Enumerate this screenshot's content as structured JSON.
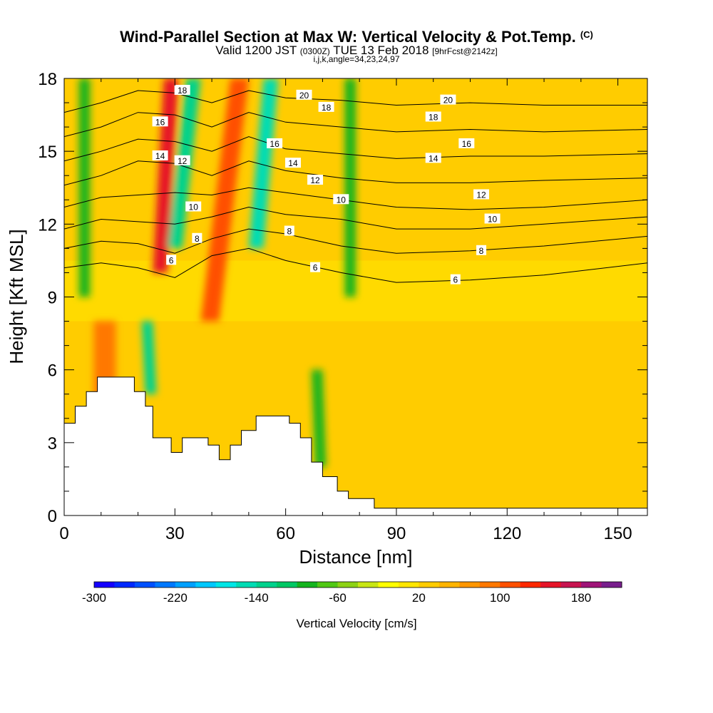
{
  "header": {
    "title": "Wind-Parallel Section at Max W: Vertical Velocity & Pot.Temp.",
    "title_unit": "(C)",
    "valid_prefix": "Valid 1200 JST",
    "valid_utc": "(0300Z)",
    "valid_date": "TUE 13 Feb 2018",
    "forecast": "[9hrFcst@2142z]",
    "indices": "i,j,k,angle=34,23,24,97"
  },
  "chart_data": {
    "type": "heatmap",
    "xlabel": "Distance [nm]",
    "ylabel": "Height [Kft MSL]",
    "xlim": [
      0,
      158
    ],
    "ylim": [
      0,
      18
    ],
    "x_ticks": [
      "0",
      "30",
      "60",
      "90",
      "120",
      "150"
    ],
    "y_ticks": [
      "0",
      "3",
      "6",
      "9",
      "12",
      "15",
      "18"
    ],
    "colorbar": {
      "label": "Vertical Velocity [cm/s]",
      "range": [
        -300,
        200
      ],
      "step": 20,
      "tick_labels": [
        "-300",
        "-220",
        "-140",
        "-60",
        "20",
        "100",
        "180"
      ],
      "colors": [
        "#1400ff",
        "#0028ff",
        "#0050ff",
        "#0078ff",
        "#00a0ff",
        "#00c8ff",
        "#00e6e6",
        "#00dcb4",
        "#00d28c",
        "#00c864",
        "#14b41e",
        "#50c814",
        "#8cd214",
        "#c8e614",
        "#ffff00",
        "#ffe600",
        "#ffcc00",
        "#ffb400",
        "#ff9600",
        "#ff7800",
        "#ff5000",
        "#ff2800",
        "#e61428",
        "#c81450",
        "#a01478",
        "#781e8c"
      ]
    },
    "terrain_profile": {
      "x": [
        0,
        3,
        3,
        6,
        6,
        9,
        9,
        13,
        13,
        19,
        19,
        22,
        22,
        24,
        24,
        26,
        26,
        29,
        29,
        32,
        32,
        39,
        39,
        42,
        42,
        45,
        45,
        48,
        48,
        52,
        52,
        61,
        61,
        64,
        64,
        67,
        67,
        70,
        70,
        74,
        74,
        77,
        77,
        84,
        84,
        158
      ],
      "y": [
        3.8,
        3.8,
        4.5,
        4.5,
        5.1,
        5.1,
        5.7,
        5.7,
        5.7,
        5.7,
        5.1,
        5.1,
        4.5,
        4.5,
        3.2,
        3.2,
        3.2,
        3.2,
        2.6,
        2.6,
        3.2,
        3.2,
        2.9,
        2.9,
        2.3,
        2.3,
        2.9,
        2.9,
        3.5,
        3.5,
        4.1,
        4.1,
        3.8,
        3.8,
        3.2,
        3.2,
        2.2,
        2.2,
        1.6,
        1.6,
        1.0,
        1.0,
        0.7,
        0.7,
        0.3,
        0.3
      ]
    },
    "velocity_bands": [
      {
        "x": 4,
        "w": 3,
        "value": -100,
        "y0": 9,
        "y1": 18,
        "bottom_shift": 0
      },
      {
        "x": 27,
        "w": 4,
        "value": 150,
        "y0": 10,
        "y1": 18,
        "bottom_shift": -3
      },
      {
        "x": 33,
        "w": 4,
        "value": -130,
        "y0": 11,
        "y1": 18,
        "bottom_shift": -5
      },
      {
        "x": 45,
        "w": 5,
        "value": 110,
        "y0": 8,
        "y1": 18,
        "bottom_shift": -8
      },
      {
        "x": 54,
        "w": 4,
        "value": -150,
        "y0": 11,
        "y1": 18,
        "bottom_shift": -4
      },
      {
        "x": 76,
        "w": 3,
        "value": -90,
        "y0": 9,
        "y1": 18,
        "bottom_shift": 0
      },
      {
        "x": 21,
        "w": 3,
        "value": -130,
        "y0": 5,
        "y1": 8,
        "bottom_shift": 1
      },
      {
        "x": 67,
        "w": 3,
        "value": -90,
        "y0": 2,
        "y1": 6,
        "bottom_shift": 1
      },
      {
        "x": 8,
        "w": 6,
        "value": 80,
        "y0": 4,
        "y1": 8,
        "bottom_shift": 0
      }
    ],
    "theta_contours": [
      {
        "level": 6,
        "x": [
          0,
          10,
          20,
          30,
          40,
          50,
          60,
          75,
          90,
          110,
          130,
          158
        ],
        "y": [
          10.2,
          10.4,
          10.2,
          9.8,
          10.7,
          11.0,
          10.5,
          10.0,
          9.6,
          9.7,
          9.9,
          10.4
        ]
      },
      {
        "level": 8,
        "x": [
          0,
          10,
          20,
          30,
          40,
          50,
          60,
          75,
          90,
          110,
          130,
          158
        ],
        "y": [
          11.0,
          11.3,
          11.2,
          10.8,
          11.4,
          11.8,
          11.6,
          11.1,
          10.8,
          10.9,
          11.1,
          11.5
        ]
      },
      {
        "level": 10,
        "x": [
          0,
          10,
          20,
          30,
          40,
          50,
          60,
          75,
          90,
          110,
          130,
          158
        ],
        "y": [
          11.8,
          12.2,
          12.1,
          12.0,
          12.3,
          12.7,
          12.4,
          12.2,
          11.8,
          11.8,
          12.0,
          12.3
        ]
      },
      {
        "level": 12,
        "x": [
          0,
          10,
          20,
          30,
          40,
          50,
          60,
          75,
          90,
          110,
          130,
          158
        ],
        "y": [
          12.7,
          13.1,
          13.2,
          13.3,
          13.2,
          13.5,
          13.3,
          13.0,
          12.7,
          12.6,
          12.7,
          13.0
        ]
      },
      {
        "level": 14,
        "x": [
          0,
          10,
          20,
          30,
          40,
          50,
          60,
          75,
          90,
          110,
          130,
          158
        ],
        "y": [
          13.6,
          14.0,
          14.6,
          14.5,
          14.0,
          14.6,
          14.2,
          13.9,
          13.7,
          13.7,
          13.8,
          13.9
        ]
      },
      {
        "level": 16,
        "x": [
          0,
          10,
          20,
          30,
          40,
          50,
          60,
          75,
          90,
          110,
          130,
          158
        ],
        "y": [
          14.6,
          15.0,
          15.5,
          15.4,
          15.0,
          15.6,
          15.1,
          14.9,
          14.7,
          14.8,
          14.8,
          14.9
        ]
      },
      {
        "level": 18,
        "x": [
          0,
          10,
          20,
          30,
          40,
          50,
          60,
          75,
          90,
          110,
          130,
          158
        ],
        "y": [
          15.6,
          16.0,
          16.6,
          16.5,
          16.0,
          16.6,
          16.2,
          16.0,
          15.8,
          15.9,
          15.8,
          15.9
        ]
      },
      {
        "level": 20,
        "x": [
          0,
          10,
          20,
          30,
          40,
          50,
          60,
          75,
          90,
          110,
          130,
          158
        ],
        "y": [
          16.6,
          17.0,
          17.5,
          17.4,
          17.0,
          17.5,
          17.2,
          17.1,
          16.9,
          17.0,
          16.9,
          16.9
        ]
      }
    ],
    "contour_labels": [
      {
        "text": "6",
        "x": 29,
        "y": 10.5
      },
      {
        "text": "6",
        "x": 68,
        "y": 10.2
      },
      {
        "text": "6",
        "x": 106,
        "y": 9.7
      },
      {
        "text": "8",
        "x": 36,
        "y": 11.4
      },
      {
        "text": "8",
        "x": 61,
        "y": 11.7
      },
      {
        "text": "8",
        "x": 113,
        "y": 10.9
      },
      {
        "text": "10",
        "x": 35,
        "y": 12.7
      },
      {
        "text": "10",
        "x": 75,
        "y": 13.0
      },
      {
        "text": "10",
        "x": 116,
        "y": 12.2
      },
      {
        "text": "12",
        "x": 32,
        "y": 14.6
      },
      {
        "text": "12",
        "x": 68,
        "y": 13.8
      },
      {
        "text": "12",
        "x": 113,
        "y": 13.2
      },
      {
        "text": "14",
        "x": 26,
        "y": 14.8
      },
      {
        "text": "14",
        "x": 62,
        "y": 14.5
      },
      {
        "text": "14",
        "x": 100,
        "y": 14.7
      },
      {
        "text": "16",
        "x": 26,
        "y": 16.2
      },
      {
        "text": "16",
        "x": 57,
        "y": 15.3
      },
      {
        "text": "16",
        "x": 109,
        "y": 15.3
      },
      {
        "text": "18",
        "x": 32,
        "y": 17.5
      },
      {
        "text": "18",
        "x": 71,
        "y": 16.8
      },
      {
        "text": "18",
        "x": 100,
        "y": 16.4
      },
      {
        "text": "20",
        "x": 65,
        "y": 17.3
      },
      {
        "text": "20",
        "x": 104,
        "y": 17.1
      }
    ]
  }
}
